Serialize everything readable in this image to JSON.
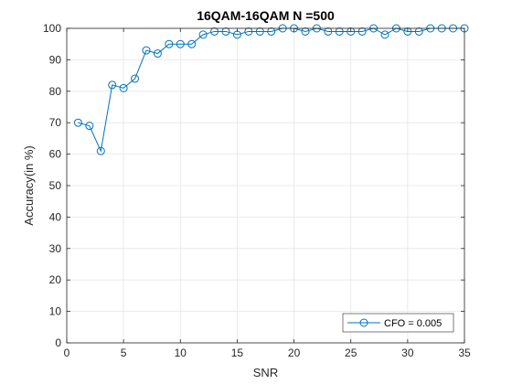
{
  "chart_data": {
    "type": "line",
    "title": "16QAM-16QAM N =500",
    "xlabel": "SNR",
    "ylabel": "Accuracy(in %)",
    "xlim": [
      0,
      35
    ],
    "ylim": [
      0,
      100
    ],
    "x_ticks": [
      0,
      5,
      10,
      15,
      20,
      25,
      30,
      35
    ],
    "y_ticks": [
      0,
      10,
      20,
      30,
      40,
      50,
      60,
      70,
      80,
      90,
      100
    ],
    "grid": true,
    "legend_position": "bottom-right",
    "series": [
      {
        "name": "CFO = 0.005",
        "color": "#0072BD",
        "marker": "circle",
        "x": [
          1,
          2,
          3,
          4,
          5,
          6,
          7,
          8,
          9,
          10,
          11,
          12,
          13,
          14,
          15,
          16,
          17,
          18,
          19,
          20,
          21,
          22,
          23,
          24,
          25,
          26,
          27,
          28,
          29,
          30,
          31,
          32,
          33,
          34,
          35
        ],
        "y": [
          70,
          69,
          61,
          82,
          81,
          84,
          93,
          92,
          95,
          95,
          95,
          98,
          99,
          99,
          98,
          99,
          99,
          99,
          100,
          100,
          99,
          100,
          99,
          99,
          99,
          99,
          100,
          98,
          100,
          99,
          99,
          100,
          100,
          100,
          100
        ]
      }
    ]
  }
}
